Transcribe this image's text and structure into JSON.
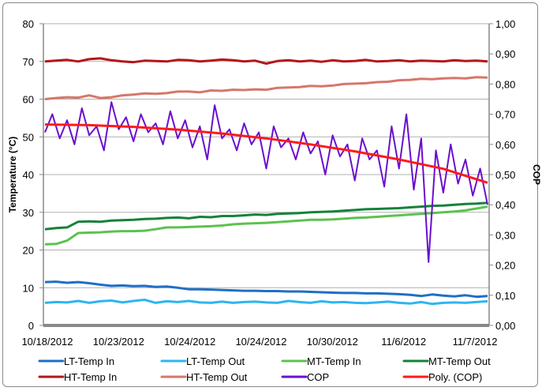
{
  "chart_data": {
    "type": "line",
    "title": "",
    "ylabel": "Temperature (°C)",
    "y2label": "COP",
    "ylim": [
      0,
      80
    ],
    "y2lim": [
      0,
      1
    ],
    "yticks": [
      "0",
      "10",
      "20",
      "30",
      "40",
      "50",
      "60",
      "70",
      "80"
    ],
    "y2ticks": [
      "0,00",
      "0,10",
      "0,20",
      "0,30",
      "0,40",
      "0,50",
      "0,60",
      "0,70",
      "0,80",
      "0,90",
      "1,00"
    ],
    "xticks": [
      "10/18/2012",
      "10/23/2012",
      "10/24/2012",
      "10/24/2012",
      "10/30/2012",
      "11/6/2012",
      "11/7/2012"
    ],
    "grid": "horizontal",
    "legend_position": "bottom",
    "series": [
      {
        "name": "LT-Temp In",
        "axis": "left",
        "color": "#1f6fc5",
        "values": [
          11.5,
          11.6,
          11.3,
          11.5,
          11.2,
          10.8,
          10.5,
          10.6,
          10.4,
          10.5,
          10.2,
          10.3,
          10,
          9.6,
          9.6,
          9.5,
          9.4,
          9.3,
          9.2,
          9.2,
          9.1,
          9.1,
          9,
          9,
          8.9,
          8.8,
          8.7,
          8.6,
          8.6,
          8.5,
          8.5,
          8.4,
          8.3,
          8.1,
          7.8,
          8.2,
          7.9,
          7.7,
          8,
          7.6,
          7.8
        ]
      },
      {
        "name": "LT-Temp Out",
        "axis": "left",
        "color": "#2eb5f0",
        "values": [
          6,
          6.2,
          6.1,
          6.5,
          6,
          6.4,
          6.6,
          6.1,
          6.5,
          6.8,
          6,
          6.4,
          6.2,
          6.5,
          6.1,
          6,
          6.3,
          6,
          6.2,
          6.3,
          6.1,
          6,
          6.5,
          6.2,
          6,
          6.4,
          6.1,
          6.2,
          6,
          5.9,
          6.1,
          6.3,
          6,
          5.8,
          6.2,
          5.7,
          6,
          6.1,
          6,
          6.2,
          6.4
        ]
      },
      {
        "name": "MT-Temp In",
        "axis": "left",
        "color": "#5cc24f",
        "values": [
          21.5,
          21.6,
          22.5,
          24.5,
          24.6,
          24.7,
          24.9,
          25,
          25,
          25.1,
          25.5,
          26,
          26,
          26.1,
          26.2,
          26.3,
          26.5,
          26.8,
          27,
          27.1,
          27.2,
          27.4,
          27.6,
          27.8,
          28,
          28,
          28.1,
          28.3,
          28.5,
          28.6,
          28.8,
          29,
          29.2,
          29.4,
          29.6,
          29.8,
          30,
          30.2,
          30.5,
          31,
          31.5
        ]
      },
      {
        "name": "MT-Temp Out",
        "axis": "left",
        "color": "#15823a",
        "values": [
          25.5,
          25.8,
          26,
          27.5,
          27.6,
          27.5,
          27.8,
          27.9,
          28,
          28.2,
          28.3,
          28.5,
          28.6,
          28.4,
          28.8,
          28.7,
          29,
          29,
          29.2,
          29.4,
          29.3,
          29.6,
          29.7,
          29.8,
          30,
          30.1,
          30.2,
          30.4,
          30.6,
          30.8,
          30.9,
          31,
          31.1,
          31.3,
          31.5,
          31.7,
          31.8,
          32,
          32.2,
          32.3,
          32.5
        ]
      },
      {
        "name": "HT-Temp In",
        "axis": "left",
        "color": "#b4161b",
        "values": [
          70,
          70.2,
          70.4,
          70,
          70.6,
          70.8,
          70.3,
          70,
          69.8,
          70.2,
          70.1,
          70,
          70.4,
          70.3,
          70,
          70.2,
          70.5,
          70.3,
          70,
          70.2,
          69.4,
          70.1,
          70.3,
          70,
          70.2,
          69.9,
          70.3,
          70,
          70.1,
          70.4,
          70,
          70.1,
          70.3,
          70,
          70.2,
          70.1,
          70,
          70.3,
          70.1,
          70.2,
          70
        ]
      },
      {
        "name": "HT-Temp Out",
        "axis": "left",
        "color": "#d6776a",
        "values": [
          60,
          60.3,
          60.5,
          60.4,
          61,
          60.3,
          60.5,
          61,
          61.2,
          61.5,
          61.4,
          61.6,
          62,
          62,
          61.8,
          62.3,
          62.2,
          62.5,
          62.4,
          62.6,
          62.5,
          63,
          63.1,
          63.2,
          63.5,
          63.4,
          63.6,
          64,
          64.1,
          64.2,
          64.5,
          64.6,
          65,
          65.1,
          65.4,
          65.3,
          65.5,
          65.6,
          65.5,
          65.8,
          65.7
        ]
      },
      {
        "name": "COP",
        "axis": "right",
        "color": "#6a0fcf",
        "values": [
          0.64,
          0.7,
          0.62,
          0.68,
          0.6,
          0.72,
          0.63,
          0.66,
          0.58,
          0.74,
          0.65,
          0.69,
          0.61,
          0.7,
          0.64,
          0.67,
          0.6,
          0.71,
          0.62,
          0.68,
          0.59,
          0.66,
          0.55,
          0.73,
          0.62,
          0.65,
          0.58,
          0.67,
          0.6,
          0.64,
          0.52,
          0.66,
          0.59,
          0.62,
          0.55,
          0.64,
          0.57,
          0.61,
          0.5,
          0.63,
          0.56,
          0.6,
          0.48,
          0.62,
          0.55,
          0.58,
          0.46,
          0.66,
          0.52,
          0.7,
          0.45,
          0.62,
          0.21,
          0.58,
          0.44,
          0.6,
          0.47,
          0.55,
          0.43,
          0.52,
          0.4
        ]
      },
      {
        "name": "Poly. (COP)",
        "axis": "right",
        "color": "#ff1a1a",
        "values": [
          0.666,
          0.664,
          0.658,
          0.649,
          0.636,
          0.62,
          0.6,
          0.577,
          0.55,
          0.519,
          0.473
        ]
      }
    ]
  }
}
